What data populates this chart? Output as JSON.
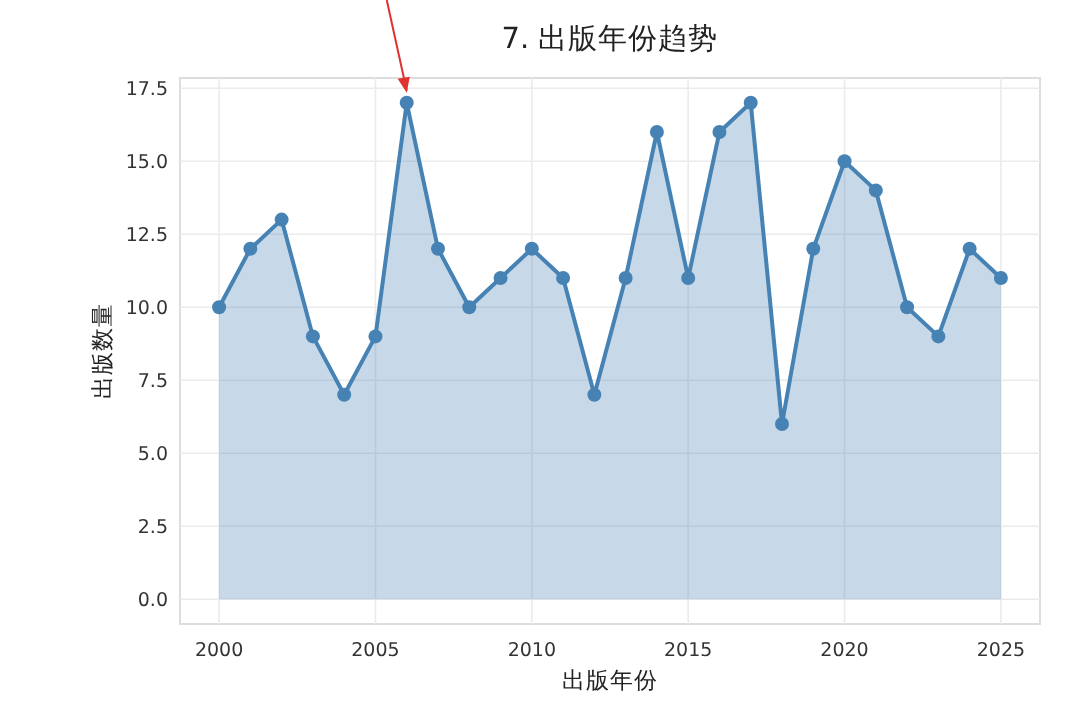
{
  "chart_data": {
    "type": "area",
    "title": "7. 出版年份趋势",
    "xlabel": "出版年份",
    "ylabel": "出版数量",
    "x": [
      2000,
      2001,
      2002,
      2003,
      2004,
      2005,
      2006,
      2007,
      2008,
      2009,
      2010,
      2011,
      2012,
      2013,
      2014,
      2015,
      2016,
      2017,
      2018,
      2019,
      2020,
      2021,
      2022,
      2023,
      2024,
      2025
    ],
    "series": [
      {
        "color": "#4682b4",
        "values": [
          10,
          12,
          13,
          9,
          7,
          9,
          17,
          12,
          10,
          11,
          12,
          11,
          7,
          11,
          16,
          11,
          16,
          17,
          6,
          12,
          15,
          14,
          10,
          9,
          12,
          11
        ]
      }
    ],
    "xlim": [
      1998.75,
      2026.25
    ],
    "ylim": [
      -0.85,
      17.85
    ],
    "xticks": [
      2000,
      2005,
      2010,
      2015,
      2020,
      2025
    ],
    "yticks": [
      {
        "value": 0,
        "label": "0.0"
      },
      {
        "value": 2.5,
        "label": "2.5"
      },
      {
        "value": 5,
        "label": "5.0"
      },
      {
        "value": 7.5,
        "label": "7.5"
      },
      {
        "value": 10,
        "label": "10.0"
      },
      {
        "value": 12.5,
        "label": "12.5"
      },
      {
        "value": 15,
        "label": "15.0"
      },
      {
        "value": 17.5,
        "label": "17.5"
      }
    ],
    "grid": true,
    "marker": "circle",
    "line_style": "solid"
  }
}
